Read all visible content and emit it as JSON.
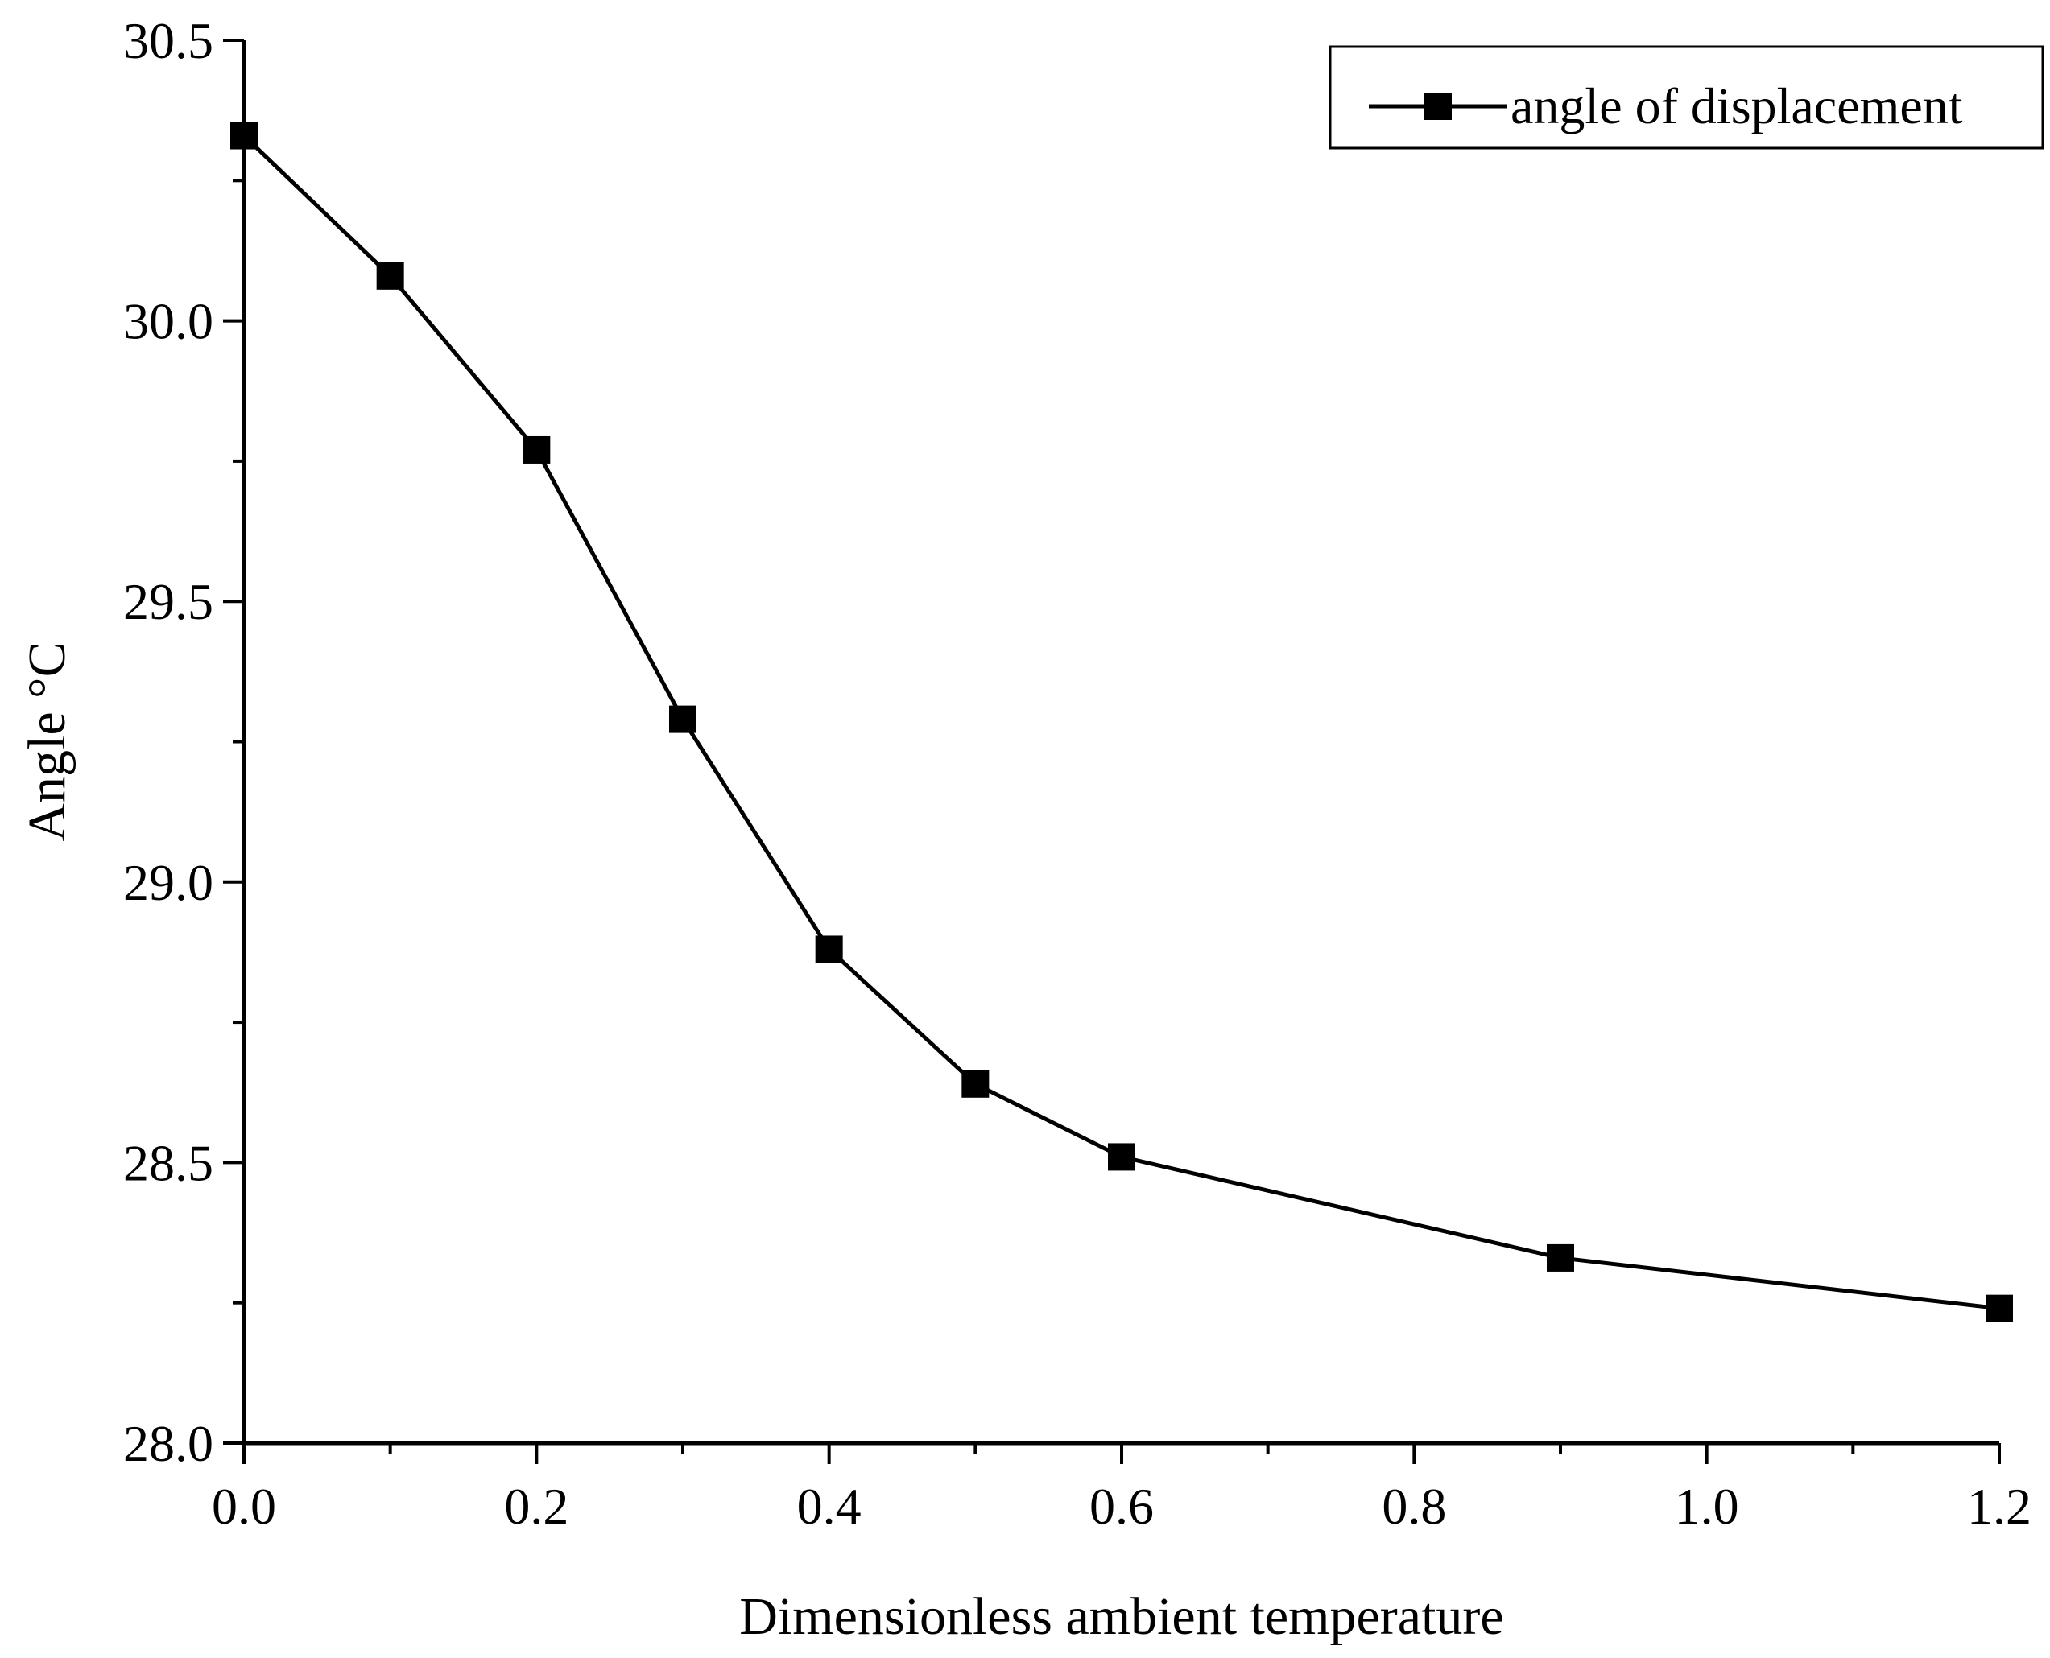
{
  "chart_data": {
    "type": "line",
    "title": "",
    "xlabel": "Dimensionless ambient temperature",
    "ylabel": "Angle °C",
    "xlim": [
      0.0,
      1.2
    ],
    "ylim": [
      28.0,
      30.5
    ],
    "xticks": [
      0.0,
      0.2,
      0.4,
      0.6,
      0.8,
      1.0,
      1.2
    ],
    "xtick_labels": [
      "0.0",
      "0.2",
      "0.4",
      "0.6",
      "0.8",
      "1.0",
      "1.2"
    ],
    "xminor": [
      0.1,
      0.3,
      0.5,
      0.7,
      0.9,
      1.1
    ],
    "yticks": [
      28.0,
      28.5,
      29.0,
      29.5,
      30.0,
      30.5
    ],
    "ytick_labels": [
      "28.0",
      "28.5",
      "29.0",
      "29.5",
      "30.0",
      "30.5"
    ],
    "yminor": [
      28.25,
      28.75,
      29.25,
      29.75,
      30.25
    ],
    "grid": false,
    "legend_position": "top-right",
    "series": [
      {
        "name": "angle of displacement",
        "marker": "square",
        "color": "#000000",
        "x": [
          0.0,
          0.1,
          0.2,
          0.3,
          0.4,
          0.5,
          0.6,
          0.9,
          1.2
        ],
        "y": [
          30.33,
          30.08,
          29.77,
          29.29,
          28.88,
          28.64,
          28.51,
          28.33,
          28.24
        ]
      }
    ]
  }
}
